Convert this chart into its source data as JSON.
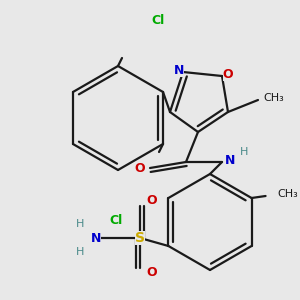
{
  "background": "#e8e8e8",
  "bond_color": "#1a1a1a",
  "N_color": "#0000cc",
  "O_color": "#cc0000",
  "Cl_color": "#00aa00",
  "S_color": "#ccaa00",
  "C_color": "#1a1a1a",
  "teal_color": "#4a8a8a",
  "lw": 1.6,
  "figsize": [
    3.0,
    3.0
  ],
  "dpi": 100,
  "xlim": [
    0,
    300
  ],
  "ylim": [
    0,
    300
  ]
}
